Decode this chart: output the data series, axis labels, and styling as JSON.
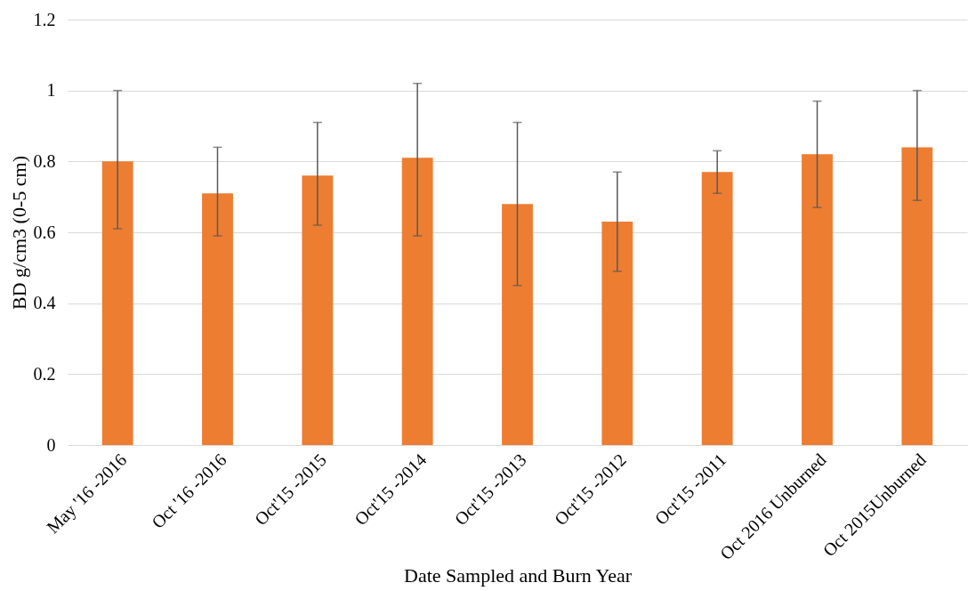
{
  "chart_data": {
    "type": "bar",
    "xlabel": "Date Sampled and Burn Year",
    "ylabel": "BD g/cm3 (0-5 cm)",
    "categories": [
      "May '16 -2016",
      "Oct '16 -2016",
      "Oct'15 -2015",
      "Oct'15 -2014",
      "Oct'15 -2013",
      "Oct'15 -2012",
      "Oct'15 -2011",
      "Oct 2016 Unburned",
      "Oct 2015Unburned"
    ],
    "series": [
      {
        "color": "#ed7d31",
        "values": [
          0.8,
          0.71,
          0.76,
          0.81,
          0.68,
          0.63,
          0.77,
          0.82,
          0.84
        ],
        "errors": [
          [
            0.61,
            1.0
          ],
          [
            0.59,
            0.84
          ],
          [
            0.62,
            0.91
          ],
          [
            0.59,
            1.02
          ],
          [
            0.45,
            0.91
          ],
          [
            0.49,
            0.77
          ],
          [
            0.71,
            0.83
          ],
          [
            0.67,
            0.97
          ],
          [
            0.69,
            1.0
          ]
        ]
      }
    ],
    "ylim": [
      0,
      1.2
    ],
    "yticks": [
      0,
      0.2,
      0.4,
      0.6,
      0.8,
      1,
      1.2
    ],
    "grid": "y"
  }
}
